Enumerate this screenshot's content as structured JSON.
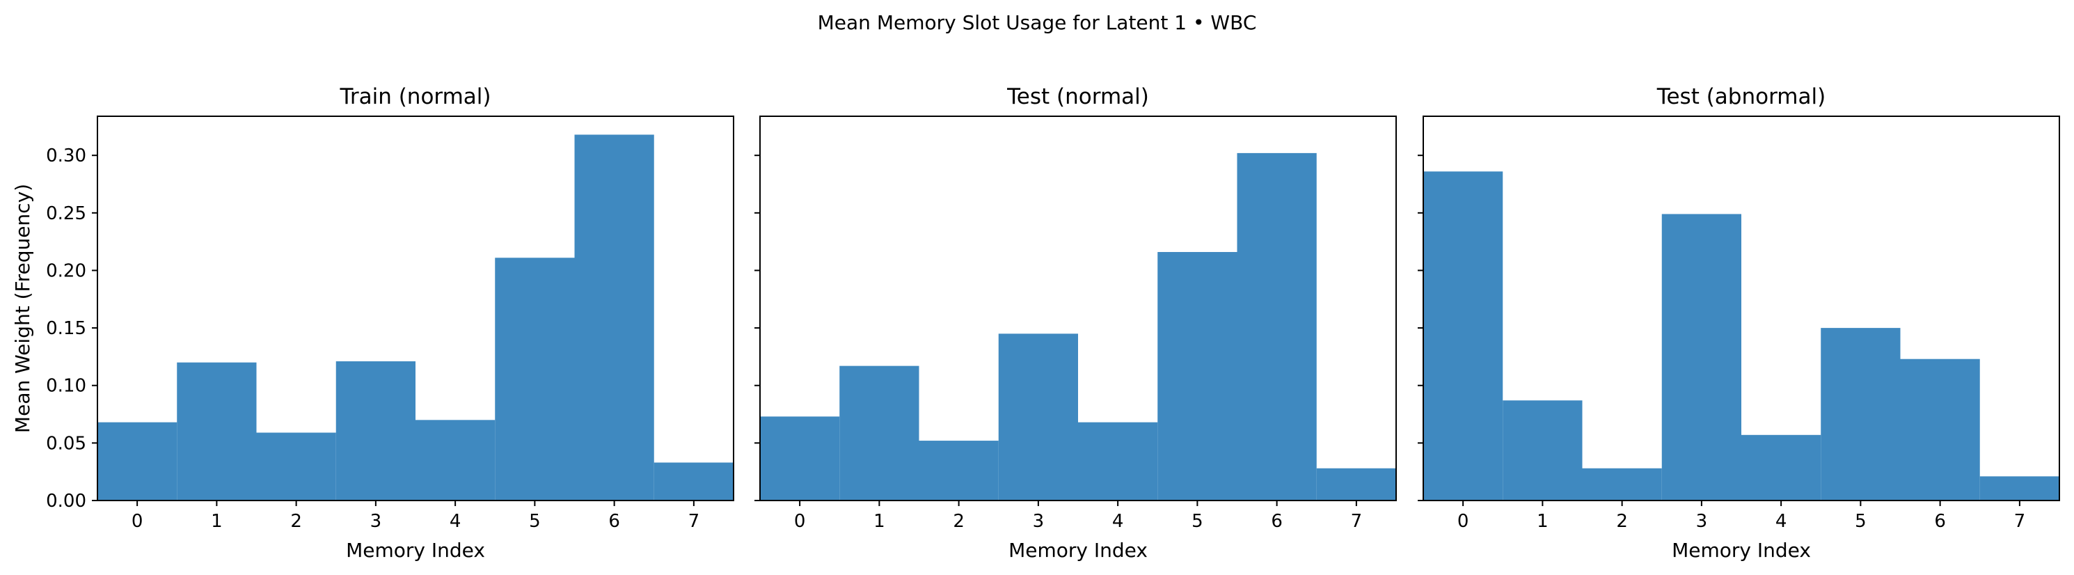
{
  "figure_title": "Mean Memory Slot Usage for Latent 1 • WBC",
  "chart_data": [
    {
      "type": "bar",
      "title": "Train (normal)",
      "xlabel": "Memory Index",
      "ylabel": "Mean Weight (Frequency)",
      "categories": [
        "0",
        "1",
        "2",
        "3",
        "4",
        "5",
        "6",
        "7"
      ],
      "values": [
        0.068,
        0.12,
        0.059,
        0.121,
        0.07,
        0.211,
        0.318,
        0.033
      ],
      "ylim": [
        0,
        0.334
      ],
      "yticks": [
        "0.00",
        "0.05",
        "0.10",
        "0.15",
        "0.20",
        "0.25",
        "0.30"
      ],
      "color": "#3f89c0",
      "grid": false
    },
    {
      "type": "bar",
      "title": "Test (normal)",
      "xlabel": "Memory Index",
      "ylabel": "",
      "categories": [
        "0",
        "1",
        "2",
        "3",
        "4",
        "5",
        "6",
        "7"
      ],
      "values": [
        0.073,
        0.117,
        0.052,
        0.145,
        0.068,
        0.216,
        0.302,
        0.028
      ],
      "ylim": [
        0,
        0.334
      ],
      "yticks": [
        "0.00",
        "0.05",
        "0.10",
        "0.15",
        "0.20",
        "0.25",
        "0.30"
      ],
      "color": "#3f89c0",
      "grid": false
    },
    {
      "type": "bar",
      "title": "Test (abnormal)",
      "xlabel": "Memory Index",
      "ylabel": "",
      "categories": [
        "0",
        "1",
        "2",
        "3",
        "4",
        "5",
        "6",
        "7"
      ],
      "values": [
        0.286,
        0.087,
        0.028,
        0.249,
        0.057,
        0.15,
        0.123,
        0.021
      ],
      "ylim": [
        0,
        0.334
      ],
      "yticks": [
        "0.00",
        "0.05",
        "0.10",
        "0.15",
        "0.20",
        "0.25",
        "0.30"
      ],
      "color": "#3f89c0",
      "grid": false
    }
  ]
}
